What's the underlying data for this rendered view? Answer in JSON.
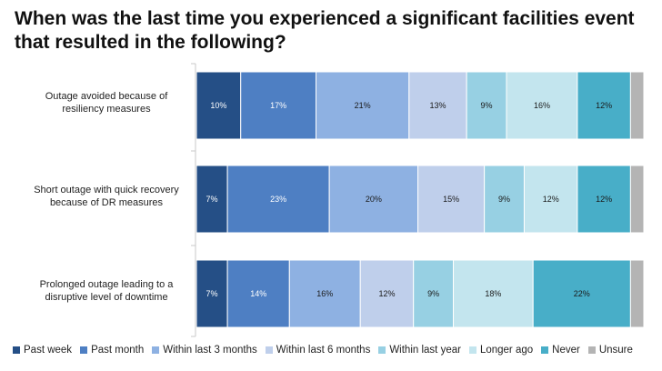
{
  "chart_data": {
    "type": "bar",
    "orientation": "horizontal",
    "stacked": true,
    "title": "When was the last time you experienced a significant facilities event that resulted in the following?",
    "categories": [
      "Outage avoided because of resiliency measures",
      "Short outage with quick recovery because of DR measures",
      "Prolonged outage leading to a disruptive level of downtime"
    ],
    "category_lines": [
      [
        "Outage avoided because of",
        "resiliency measures"
      ],
      [
        "Short outage with quick recovery",
        "because of DR measures"
      ],
      [
        "Prolonged outage leading to a",
        "disruptive level of downtime"
      ]
    ],
    "series": [
      {
        "name": "Past week",
        "color": "#254f86",
        "label_color": "#ffffff",
        "values": [
          10,
          7,
          7
        ],
        "labels": [
          "10%",
          "7%",
          "7%"
        ]
      },
      {
        "name": "Past month",
        "color": "#4e7fc3",
        "label_color": "#ffffff",
        "values": [
          17,
          23,
          14
        ],
        "labels": [
          "17%",
          "23%",
          "14%"
        ]
      },
      {
        "name": "Within last 3 months",
        "color": "#8eb1e2",
        "label_color": "#1a1a1a",
        "values": [
          21,
          20,
          16
        ],
        "labels": [
          "21%",
          "20%",
          "16%"
        ]
      },
      {
        "name": "Within last 6 months",
        "color": "#bfcfeb",
        "label_color": "#1a1a1a",
        "values": [
          13,
          15,
          12
        ],
        "labels": [
          "13%",
          "15%",
          "12%"
        ]
      },
      {
        "name": "Within last year",
        "color": "#97d0e3",
        "label_color": "#1a1a1a",
        "values": [
          9,
          9,
          9
        ],
        "labels": [
          "9%",
          "9%",
          "9%"
        ]
      },
      {
        "name": "Longer ago",
        "color": "#c3e5ee",
        "label_color": "#1a1a1a",
        "values": [
          16,
          12,
          18
        ],
        "labels": [
          "16%",
          "12%",
          "18%"
        ]
      },
      {
        "name": "Never",
        "color": "#48aec8",
        "label_color": "#1a1a1a",
        "values": [
          12,
          12,
          22
        ],
        "labels": [
          "12%",
          "12%",
          "22%"
        ]
      },
      {
        "name": "Unsure",
        "color": "#b4b4b4",
        "label_color": "#1a1a1a",
        "values": [
          3,
          3,
          3
        ],
        "labels": [
          "",
          "",
          ""
        ]
      }
    ],
    "xlim": [
      0,
      100
    ],
    "legend": "bottom",
    "grid": false
  }
}
